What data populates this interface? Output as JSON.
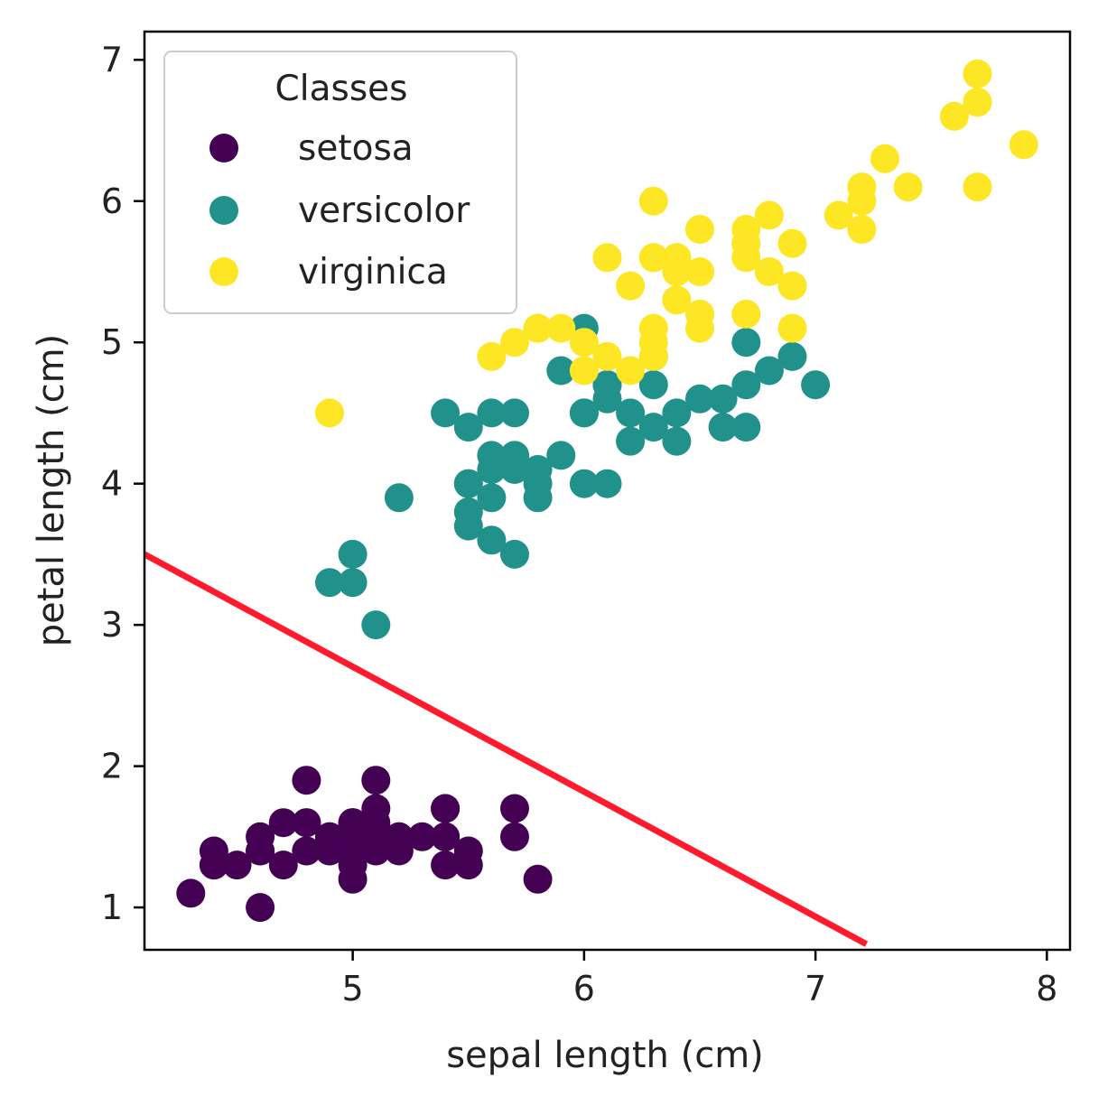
{
  "chart_data": {
    "type": "scatter",
    "xlabel": "sepal length (cm)",
    "ylabel": "petal length (cm)",
    "xlim": [
      4.1,
      8.1
    ],
    "ylim": [
      0.7,
      7.2
    ],
    "xticks": [
      5,
      6,
      7,
      8
    ],
    "yticks": [
      1,
      2,
      3,
      4,
      5,
      6,
      7
    ],
    "grid": false,
    "legend": {
      "title": "Classes",
      "placement": "upper-left"
    },
    "series": [
      {
        "name": "setosa",
        "color": "#440154",
        "points": [
          [
            5.1,
            1.4
          ],
          [
            4.9,
            1.4
          ],
          [
            4.7,
            1.3
          ],
          [
            4.6,
            1.5
          ],
          [
            5.0,
            1.4
          ],
          [
            5.4,
            1.7
          ],
          [
            4.6,
            1.4
          ],
          [
            5.0,
            1.5
          ],
          [
            4.4,
            1.4
          ],
          [
            4.9,
            1.5
          ],
          [
            5.4,
            1.5
          ],
          [
            4.8,
            1.6
          ],
          [
            4.8,
            1.4
          ],
          [
            4.3,
            1.1
          ],
          [
            5.8,
            1.2
          ],
          [
            5.7,
            1.5
          ],
          [
            5.4,
            1.3
          ],
          [
            5.1,
            1.4
          ],
          [
            5.7,
            1.7
          ],
          [
            5.1,
            1.5
          ],
          [
            5.4,
            1.7
          ],
          [
            5.1,
            1.5
          ],
          [
            4.6,
            1.0
          ],
          [
            5.1,
            1.7
          ],
          [
            4.8,
            1.9
          ],
          [
            5.0,
            1.6
          ],
          [
            5.0,
            1.6
          ],
          [
            5.2,
            1.5
          ],
          [
            5.2,
            1.4
          ],
          [
            4.7,
            1.6
          ],
          [
            4.8,
            1.6
          ],
          [
            5.4,
            1.5
          ],
          [
            5.2,
            1.5
          ],
          [
            5.5,
            1.4
          ],
          [
            4.9,
            1.5
          ],
          [
            5.0,
            1.2
          ],
          [
            5.5,
            1.3
          ],
          [
            4.9,
            1.4
          ],
          [
            4.4,
            1.3
          ],
          [
            5.1,
            1.5
          ],
          [
            5.0,
            1.3
          ],
          [
            4.5,
            1.3
          ],
          [
            4.4,
            1.3
          ],
          [
            5.0,
            1.6
          ],
          [
            5.1,
            1.9
          ],
          [
            4.8,
            1.4
          ],
          [
            5.1,
            1.6
          ],
          [
            4.6,
            1.4
          ],
          [
            5.3,
            1.5
          ],
          [
            5.0,
            1.4
          ]
        ]
      },
      {
        "name": "versicolor",
        "color": "#21918c",
        "points": [
          [
            7.0,
            4.7
          ],
          [
            6.4,
            4.5
          ],
          [
            6.9,
            4.9
          ],
          [
            5.5,
            4.0
          ],
          [
            6.5,
            4.6
          ],
          [
            5.7,
            4.5
          ],
          [
            6.3,
            4.7
          ],
          [
            4.9,
            3.3
          ],
          [
            6.6,
            4.6
          ],
          [
            5.2,
            3.9
          ],
          [
            5.0,
            3.5
          ],
          [
            5.9,
            4.2
          ],
          [
            6.0,
            4.0
          ],
          [
            6.1,
            4.7
          ],
          [
            5.6,
            3.6
          ],
          [
            6.7,
            4.4
          ],
          [
            5.6,
            4.5
          ],
          [
            5.8,
            4.1
          ],
          [
            6.2,
            4.5
          ],
          [
            5.6,
            3.9
          ],
          [
            5.9,
            4.8
          ],
          [
            6.1,
            4.0
          ],
          [
            6.3,
            4.9
          ],
          [
            6.1,
            4.7
          ],
          [
            6.4,
            4.3
          ],
          [
            6.6,
            4.4
          ],
          [
            6.8,
            4.8
          ],
          [
            6.7,
            5.0
          ],
          [
            6.0,
            4.5
          ],
          [
            5.7,
            3.5
          ],
          [
            5.5,
            3.8
          ],
          [
            5.5,
            3.7
          ],
          [
            5.8,
            3.9
          ],
          [
            6.0,
            5.1
          ],
          [
            5.4,
            4.5
          ],
          [
            6.0,
            4.5
          ],
          [
            6.7,
            4.7
          ],
          [
            6.3,
            4.4
          ],
          [
            5.6,
            4.1
          ],
          [
            5.5,
            4.0
          ],
          [
            5.5,
            4.4
          ],
          [
            6.1,
            4.6
          ],
          [
            5.8,
            4.0
          ],
          [
            5.0,
            3.3
          ],
          [
            5.6,
            4.2
          ],
          [
            5.7,
            4.2
          ],
          [
            5.7,
            4.2
          ],
          [
            6.2,
            4.3
          ],
          [
            5.1,
            3.0
          ],
          [
            5.7,
            4.1
          ]
        ]
      },
      {
        "name": "virginica",
        "color": "#fde725",
        "points": [
          [
            6.3,
            6.0
          ],
          [
            5.8,
            5.1
          ],
          [
            7.1,
            5.9
          ],
          [
            6.3,
            5.6
          ],
          [
            6.5,
            5.8
          ],
          [
            7.6,
            6.6
          ],
          [
            4.9,
            4.5
          ],
          [
            7.3,
            6.3
          ],
          [
            6.7,
            5.8
          ],
          [
            7.2,
            6.1
          ],
          [
            6.5,
            5.1
          ],
          [
            6.4,
            5.3
          ],
          [
            6.8,
            5.5
          ],
          [
            5.7,
            5.0
          ],
          [
            5.8,
            5.1
          ],
          [
            6.4,
            5.3
          ],
          [
            6.5,
            5.5
          ],
          [
            7.7,
            6.7
          ],
          [
            7.7,
            6.9
          ],
          [
            6.0,
            5.0
          ],
          [
            6.9,
            5.7
          ],
          [
            5.6,
            4.9
          ],
          [
            7.7,
            6.7
          ],
          [
            6.3,
            4.9
          ],
          [
            6.7,
            5.7
          ],
          [
            7.2,
            6.0
          ],
          [
            6.2,
            4.8
          ],
          [
            6.1,
            4.9
          ],
          [
            6.4,
            5.6
          ],
          [
            7.2,
            5.8
          ],
          [
            7.4,
            6.1
          ],
          [
            7.9,
            6.4
          ],
          [
            6.4,
            5.6
          ],
          [
            6.3,
            5.1
          ],
          [
            6.1,
            5.6
          ],
          [
            7.7,
            6.1
          ],
          [
            6.3,
            5.6
          ],
          [
            6.4,
            5.5
          ],
          [
            6.0,
            4.8
          ],
          [
            6.9,
            5.4
          ],
          [
            6.7,
            5.6
          ],
          [
            6.9,
            5.1
          ],
          [
            5.8,
            5.1
          ],
          [
            6.8,
            5.9
          ],
          [
            6.7,
            5.7
          ],
          [
            6.7,
            5.2
          ],
          [
            6.3,
            5.0
          ],
          [
            6.5,
            5.2
          ],
          [
            6.2,
            5.4
          ],
          [
            5.9,
            5.1
          ]
        ]
      }
    ],
    "decision_line": {
      "color": "#ff1a2e",
      "points": [
        [
          4.1,
          3.5
        ],
        [
          7.22,
          0.74
        ]
      ]
    }
  }
}
